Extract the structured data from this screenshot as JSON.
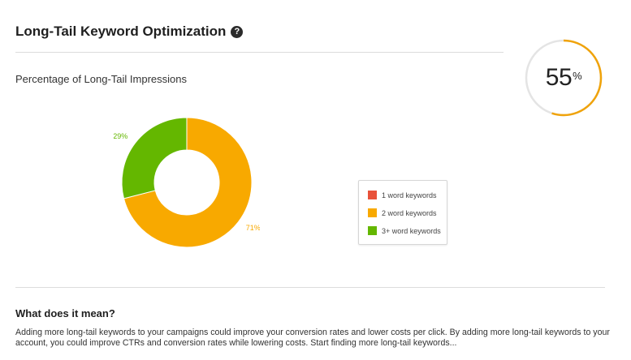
{
  "header": {
    "title": "Long-Tail Keyword Optimization",
    "help_icon": "question-circle-icon"
  },
  "subtitle": "Percentage of Long-Tail Impressions",
  "score": {
    "value": "55",
    "unit": "%",
    "progress": 55,
    "ring_color": "#f0a30a",
    "track_color": "#e4e4e4"
  },
  "chart_data": {
    "type": "pie",
    "title": "",
    "slices": [
      {
        "name": "1 word keywords",
        "value": 0,
        "color": "#e8513a",
        "label": ""
      },
      {
        "name": "2 word keywords",
        "value": 71,
        "color": "#f8a900",
        "label": "71%"
      },
      {
        "name": "3+ word keywords",
        "value": 29,
        "color": "#64b700",
        "label": "29%"
      }
    ],
    "legend_position": "right"
  },
  "legend": {
    "items": [
      {
        "label": "1 word keywords",
        "color": "#e8513a"
      },
      {
        "label": "2 word keywords",
        "color": "#f8a900"
      },
      {
        "label": "3+ word keywords",
        "color": "#64b700"
      }
    ]
  },
  "meaning": {
    "title": "What does it mean?",
    "text": "Adding more long-tail keywords to your campaigns could improve your conversion rates and lower costs per click. By adding more long-tail keywords to your account, you could improve CTRs and conversion rates while lowering costs. Start finding more long-tail keywords..."
  }
}
